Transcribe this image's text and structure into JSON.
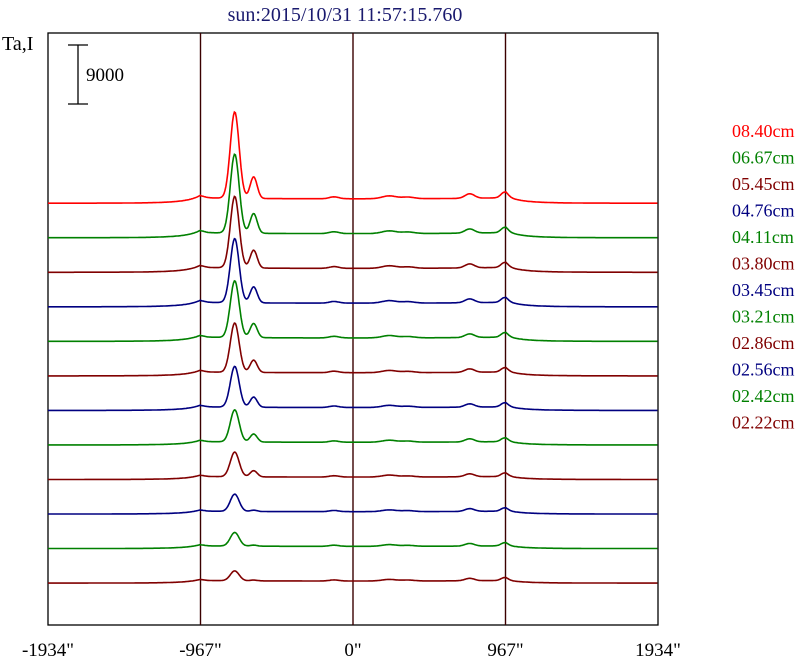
{
  "chart_data": {
    "type": "line",
    "title": "sun:2015/10/31 11:57:15.760",
    "ylabel": "Ta,I",
    "xlabel": "",
    "xlim": [
      -1934,
      1934
    ],
    "ylim": [
      0,
      240000
    ],
    "x_ticks": [
      -1934,
      -967,
      0,
      967,
      1934
    ],
    "x_tick_labels": [
      "-1934\"",
      "-967\"",
      "0\"",
      "967\"",
      "1934\""
    ],
    "vertical_lines": [
      -967,
      0,
      967
    ],
    "scale_bar": {
      "label": "9000",
      "value": 9000
    },
    "legend_position": "right",
    "series_layout": "stacked-offset",
    "series": [
      {
        "name": "08.40cm",
        "color": "#ff0000",
        "offset": 171000,
        "peak": 35000,
        "limb": 2600,
        "disk": 1800
      },
      {
        "name": "06.67cm",
        "color": "#008000",
        "offset": 157000,
        "peak": 32000,
        "limb": 2400,
        "disk": 1700
      },
      {
        "name": "05.45cm",
        "color": "#800000",
        "offset": 143000,
        "peak": 29000,
        "limb": 2300,
        "disk": 1600
      },
      {
        "name": "04.76cm",
        "color": "#000080",
        "offset": 129000,
        "peak": 26000,
        "limb": 2200,
        "disk": 1500
      },
      {
        "name": "04.11cm",
        "color": "#008000",
        "offset": 115000,
        "peak": 23000,
        "limb": 2100,
        "disk": 1400
      },
      {
        "name": "03.80cm",
        "color": "#800000",
        "offset": 101000,
        "peak": 20000,
        "limb": 2000,
        "disk": 1300
      },
      {
        "name": "03.45cm",
        "color": "#000080",
        "offset": 87000,
        "peak": 16500,
        "limb": 1900,
        "disk": 1200
      },
      {
        "name": "03.21cm",
        "color": "#008000",
        "offset": 73000,
        "peak": 13000,
        "limb": 1800,
        "disk": 1100
      },
      {
        "name": "02.86cm",
        "color": "#800000",
        "offset": 59000,
        "peak": 10000,
        "limb": 1700,
        "disk": 1000
      },
      {
        "name": "02.56cm",
        "color": "#000080",
        "offset": 45000,
        "peak": 7000,
        "limb": 1600,
        "disk": 950
      },
      {
        "name": "02.42cm",
        "color": "#008000",
        "offset": 31000,
        "peak": 5500,
        "limb": 1500,
        "disk": 900
      },
      {
        "name": "02.22cm",
        "color": "#800000",
        "offset": 17000,
        "peak": 4000,
        "limb": 1400,
        "disk": 850
      }
    ]
  }
}
